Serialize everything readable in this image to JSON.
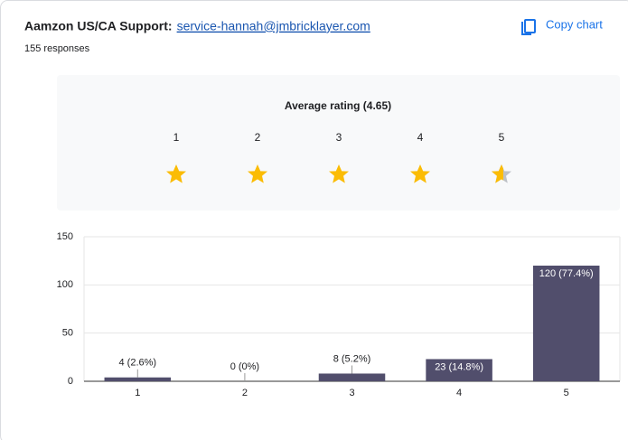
{
  "header": {
    "title": "Aamzon US/CA Support:",
    "link": "service-hannah@jmbricklayer.com",
    "responses": "155 responses",
    "copy_button": "Copy chart"
  },
  "rating": {
    "title": "Average rating (4.65)",
    "labels": [
      1,
      2,
      3,
      4,
      5
    ]
  },
  "chart_data": {
    "type": "bar",
    "categories": [
      "1",
      "2",
      "3",
      "4",
      "5"
    ],
    "values": [
      4,
      0,
      8,
      23,
      120
    ],
    "value_labels": [
      "4 (2.6%)",
      "0 (0%)",
      "8 (5.2%)",
      "23 (14.8%)",
      "120 (77.4%)"
    ],
    "color": "#514e6c",
    "ylim": [
      0,
      150
    ],
    "yticks": [
      0,
      50,
      100,
      150
    ],
    "grid": true
  }
}
